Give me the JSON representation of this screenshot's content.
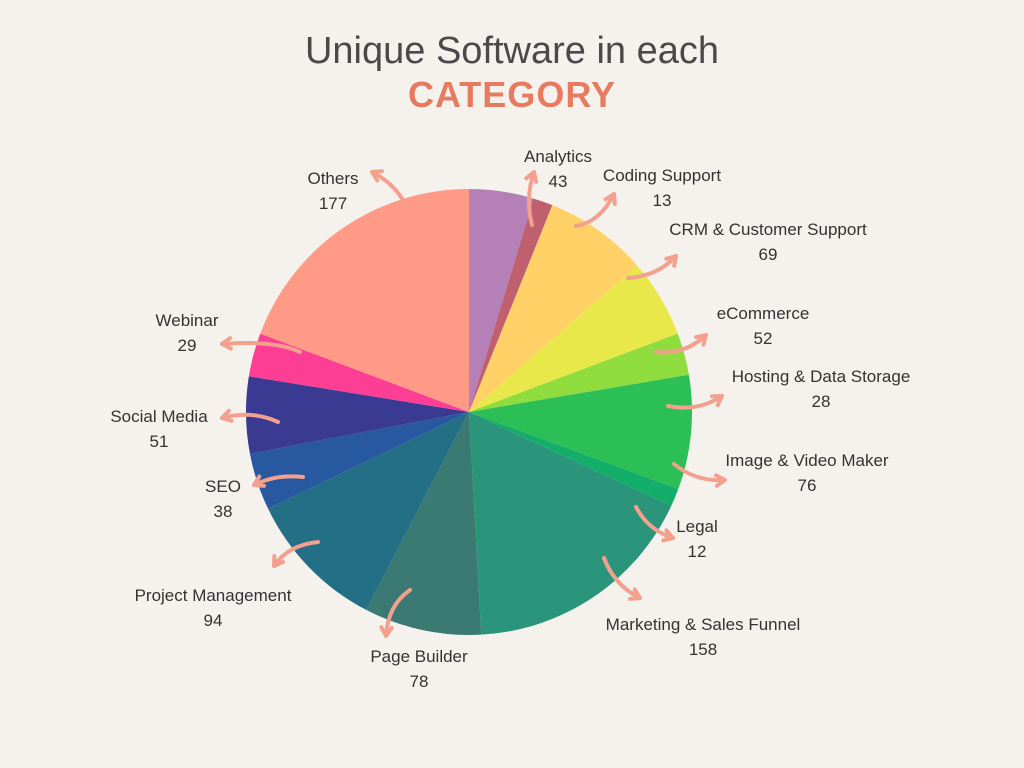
{
  "title": "Unique Software in each",
  "subtitle": "CATEGORY",
  "colors": {
    "title": "#4a4a4a",
    "subtitle": "#e77b5f",
    "arrow": "#f3a08e",
    "background": "#f5f2ee"
  },
  "chart_data": {
    "type": "pie",
    "title": "Unique Software in each CATEGORY",
    "slices": [
      {
        "label": "Analytics",
        "value": 43,
        "color": "#b57fb7"
      },
      {
        "label": "Coding Support",
        "value": 13,
        "color": "#c0606e"
      },
      {
        "label": "CRM & Customer Support",
        "value": 69,
        "color": "#ffd166"
      },
      {
        "label": "eCommerce",
        "value": 52,
        "color": "#e8e84a"
      },
      {
        "label": "Hosting & Data Storage",
        "value": 28,
        "color": "#8fdc3e"
      },
      {
        "label": "Image & Video Maker",
        "value": 76,
        "color": "#2cbf55"
      },
      {
        "label": "Legal",
        "value": 12,
        "color": "#13ae6a"
      },
      {
        "label": "Marketing & Sales Funnel",
        "value": 158,
        "color": "#2a957a"
      },
      {
        "label": "Page Builder",
        "value": 78,
        "color": "#3a7a73"
      },
      {
        "label": "Project Management",
        "value": 94,
        "color": "#236f85"
      },
      {
        "label": "SEO",
        "value": 38,
        "color": "#2858a0"
      },
      {
        "label": "Social Media",
        "value": 51,
        "color": "#3a3a92"
      },
      {
        "label": "Webinar",
        "value": 29,
        "color": "#fc3f95"
      },
      {
        "label": "Others",
        "value": 177,
        "color": "#ff9a86"
      }
    ]
  }
}
